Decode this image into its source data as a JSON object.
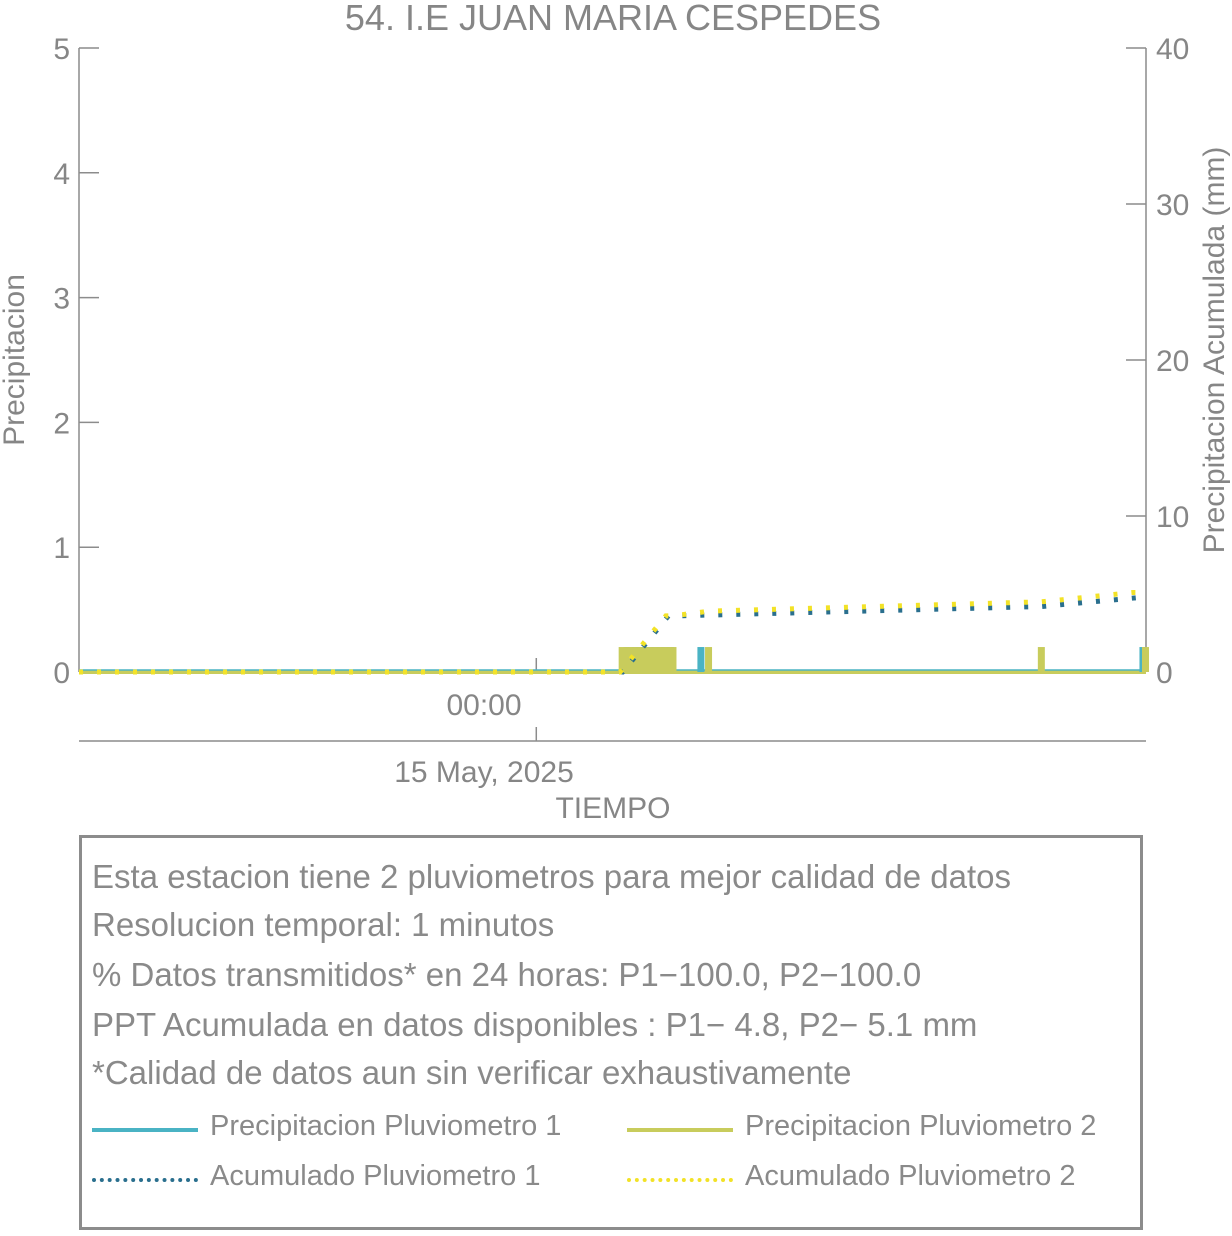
{
  "chart_data": {
    "type": "bar",
    "title": "54. I.E JUAN MARIA CESPEDES",
    "xlabel": "TIEMPO",
    "ylabel_left": "Precipitacion",
    "ylabel_right": "Precipitacion Acumulada (mm)",
    "x_tick_time": "00:00",
    "x_tick_date": "15 May, 2025",
    "x_range_hours": [
      -18,
      24
    ],
    "ylim_left": [
      0,
      5
    ],
    "ylim_right": [
      0,
      40
    ],
    "yticks_left": [
      "0",
      "1",
      "2",
      "3",
      "4",
      "5"
    ],
    "yticks_right": [
      "0",
      "10",
      "20",
      "30",
      "40"
    ],
    "series": [
      {
        "name": "Precipitacion Pluviometro 1",
        "kind": "bar",
        "color": "#4ab3c4",
        "x_hours": [
          3.6,
          3.9,
          4.1,
          4.3,
          4.5,
          4.7,
          4.9,
          5.1,
          5.3,
          6.5,
          23.9
        ],
        "values": [
          0.2,
          0.2,
          0.2,
          0.2,
          0.2,
          0.2,
          0.2,
          0.2,
          0.2,
          0.2,
          0.2
        ]
      },
      {
        "name": "Precipitacion Pluviometro 2",
        "kind": "bar",
        "color": "#c8cc5c",
        "x_hours": [
          3.4,
          3.6,
          3.8,
          4.0,
          4.2,
          4.4,
          4.6,
          4.8,
          5.0,
          5.2,
          5.4,
          6.8,
          19.9,
          24.0
        ],
        "values": [
          0.2,
          0.2,
          0.2,
          0.2,
          0.2,
          0.2,
          0.2,
          0.2,
          0.2,
          0.2,
          0.2,
          0.2,
          0.2,
          0.2
        ]
      },
      {
        "name": "Acumulado Pluviometro 1",
        "kind": "step",
        "color": "#2a6f8e",
        "x_hours": [
          -18,
          3.4,
          3.7,
          4.0,
          4.3,
          4.6,
          4.9,
          5.2,
          5.6,
          19.9,
          23.9,
          24
        ],
        "values": [
          0,
          0,
          0.6,
          1.2,
          1.8,
          2.4,
          3.0,
          3.6,
          3.6,
          4.2,
          4.8,
          4.8
        ]
      },
      {
        "name": "Acumulado Pluviometro 2",
        "kind": "step",
        "color": "#f2e227",
        "x_hours": [
          -18,
          3.3,
          3.6,
          3.9,
          4.2,
          4.5,
          4.8,
          5.1,
          5.4,
          6.8,
          19.9,
          23.5,
          24
        ],
        "values": [
          0,
          0,
          0.6,
          1.2,
          1.8,
          2.4,
          3.0,
          3.6,
          3.6,
          3.9,
          4.5,
          5.1,
          5.1
        ]
      }
    ],
    "grid": false,
    "legend_position": "bottom"
  },
  "info": {
    "line1": "Esta estacion tiene 2 pluviometros para mejor calidad de datos",
    "line2": "Resolucion temporal: 1 minutos",
    "line3": "% Datos transmitidos* en 24 horas: P1−100.0, P2−100.0",
    "line4": "PPT Acumulada en datos disponibles : P1−  4.8, P2−  5.1 mm",
    "line5": "*Calidad de datos aun sin verificar exhaustivamente"
  },
  "legend": {
    "p1_precip": "Precipitacion Pluviometro 1",
    "p2_precip": "Precipitacion Pluviometro 2",
    "p1_acum": "Acumulado Pluviometro 1",
    "p2_acum": "Acumulado Pluviometro 2",
    "colors": {
      "p1_precip": "#4ab3c4",
      "p2_precip": "#c8cc5c",
      "p1_acum": "#2a6f8e",
      "p2_acum": "#f2e227"
    }
  }
}
